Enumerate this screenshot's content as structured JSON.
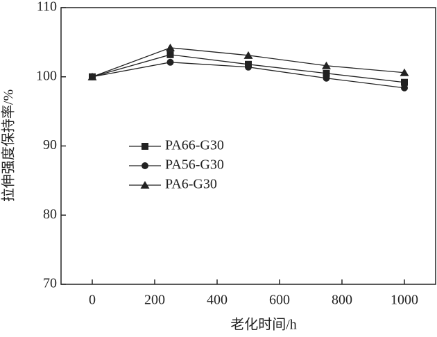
{
  "chart_data": {
    "type": "line",
    "x_label": "老化时间/h",
    "y_label": "拉伸强度保持率/%",
    "x": [
      0,
      250,
      500,
      750,
      1000
    ],
    "series": [
      {
        "name": "PA66-G30",
        "color": "#222222",
        "marker": "square",
        "values": [
          100,
          103.2,
          101.8,
          100.5,
          99.2
        ]
      },
      {
        "name": "PA56-G30",
        "color": "#222222",
        "marker": "circle",
        "values": [
          100,
          102.1,
          101.4,
          99.8,
          98.4
        ]
      },
      {
        "name": "PA6-G30",
        "color": "#222222",
        "marker": "triangle",
        "values": [
          100,
          104.2,
          103.1,
          101.6,
          100.6
        ]
      }
    ],
    "xlim": [
      -100,
      1100
    ],
    "xticks": [
      0,
      200,
      400,
      600,
      800,
      1000
    ],
    "ylim": [
      70,
      110
    ],
    "yticks": [
      70,
      80,
      90,
      100,
      110
    ],
    "grid": false,
    "legend": "center-left"
  }
}
